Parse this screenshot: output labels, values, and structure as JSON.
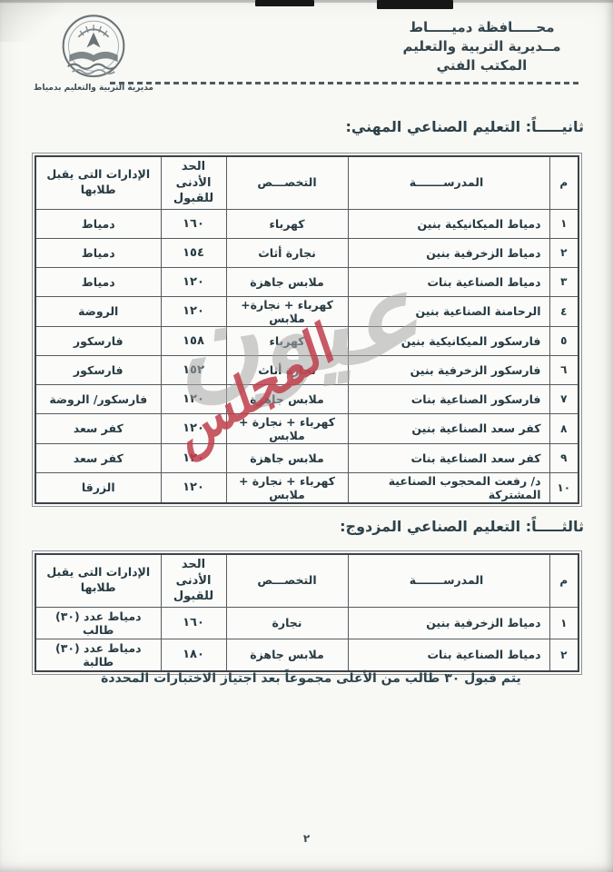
{
  "page": {
    "number": "٢"
  },
  "header": {
    "org_lines": [
      "محـــــافظة دميـــــاط",
      "مــديرية التربية والتعليم",
      "المكتب الفني"
    ],
    "logo_caption": "مديرية التربية والتعليم بدمياط"
  },
  "watermark": {
    "primary": "عيون",
    "secondary": "المجلس",
    "primary_color": "#a9a9a9",
    "secondary_color": "#c03f4c"
  },
  "tables_row_keys": [
    "num",
    "school",
    "specialty",
    "min_score",
    "districts"
  ],
  "section_professional": {
    "title": "ثانيـــــاً: التعليم الصناعي المهني:",
    "columns": {
      "num": "م",
      "school": "المدرســـــــة",
      "specialty": "التخصـــص",
      "min_score": "الحد الأدنى للقبول",
      "districts": "الإدارات التى يقبل طلابها"
    },
    "rows": [
      {
        "num": "١",
        "school": "دمياط الميكانيكية بنين",
        "specialty": "كهرباء",
        "min_score": "١٦٠",
        "districts": "دمياط"
      },
      {
        "num": "٢",
        "school": "دمياط الزخرفية  بنين",
        "specialty": "نجارة أثاث",
        "min_score": "١٥٤",
        "districts": "دمياط"
      },
      {
        "num": "٣",
        "school": "دمياط الصناعية بنات",
        "specialty": "ملابس جاهزة",
        "min_score": "١٢٠",
        "districts": "دمياط"
      },
      {
        "num": "٤",
        "school": "الرحامنة الصناعية بنين",
        "specialty": "كهرباء + نجارة+ ملابس",
        "min_score": "١٢٠",
        "districts": "الروضة"
      },
      {
        "num": "٥",
        "school": "فارسكور الميكانيكية بنين",
        "specialty": "كهرباء",
        "min_score": "١٥٨",
        "districts": "فارسكور"
      },
      {
        "num": "٦",
        "school": "فارسكور الزخرفية بنين",
        "specialty": "نجارة أثاث",
        "min_score": "١٥٢",
        "districts": "فارسكور"
      },
      {
        "num": "٧",
        "school": "فارسكور الصناعية بنات",
        "specialty": "ملابس جاهزة",
        "min_score": "١٢٠",
        "districts": "فارسكور/ الروضة"
      },
      {
        "num": "٨",
        "school": "كفر سعد الصناعية بنين",
        "specialty": "كهرباء + نجارة + ملابس",
        "min_score": "١٢٠",
        "districts": "كفر سعد"
      },
      {
        "num": "٩",
        "school": "كفر سعد الصناعية بنات",
        "specialty": "ملابس جاهزة",
        "min_score": "١٢٠",
        "districts": "كفر سعد"
      },
      {
        "num": "١٠",
        "school": "د/ رفعت المحجوب الصناعية المشتركة",
        "specialty": "كهرباء + نجارة + ملابس",
        "min_score": "١٢٠",
        "districts": "الزرقا"
      }
    ]
  },
  "section_dual": {
    "title": "ثالثـــــاً: التعليم الصناعي المزدوج:",
    "columns": {
      "num": "م",
      "school": "المدرســـــــة",
      "specialty": "التخصـــص",
      "min_score": "الحد الأدنى للقبول",
      "districts": "الإدارات التى يقبل طلابها"
    },
    "rows": [
      {
        "num": "١",
        "school": "دمياط الزخرفية بنين",
        "specialty": "نجارة",
        "min_score": "١٦٠",
        "districts": "دمياط عدد (٣٠) طالب"
      },
      {
        "num": "٢",
        "school": "دمياط الصناعية بنات",
        "specialty": "ملابس جاهزة",
        "min_score": "١٨٠",
        "districts": "دمياط عدد (٣٠) طالبة"
      }
    ]
  },
  "note": "يتم قبول ٣٠ طالب من الأعلى مجموعاً بعد اجتياز الاختبارات المحددة"
}
